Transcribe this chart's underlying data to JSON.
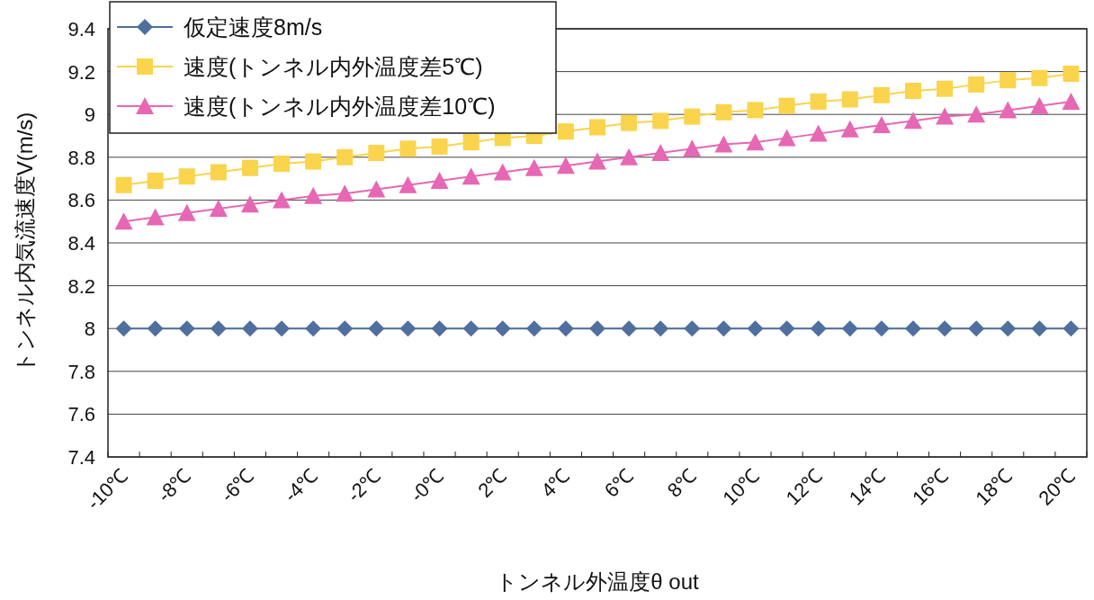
{
  "chart_data": {
    "type": "line",
    "xlabel": "トンネル外温度θ out",
    "ylabel": "トンネル内気流速度V(m/s)",
    "categories": [
      "-10℃",
      null,
      "-8℃",
      null,
      "-6℃",
      null,
      "-4℃",
      null,
      "-2℃",
      null,
      "-0℃",
      null,
      "2℃",
      null,
      "4℃",
      null,
      "6℃",
      null,
      "8℃",
      null,
      "10℃",
      null,
      "12℃",
      null,
      "14℃",
      null,
      "16℃",
      null,
      "18℃",
      null,
      "20℃"
    ],
    "series": [
      {
        "name": "仮定速度8m/s",
        "color": "#4f6f9f",
        "marker": "diamond",
        "values": [
          8,
          8,
          8,
          8,
          8,
          8,
          8,
          8,
          8,
          8,
          8,
          8,
          8,
          8,
          8,
          8,
          8,
          8,
          8,
          8,
          8,
          8,
          8,
          8,
          8,
          8,
          8,
          8,
          8,
          8,
          8
        ]
      },
      {
        "name": "速度(トンネル内外温度差5℃)",
        "color": "#f9d44c",
        "marker": "square",
        "values": [
          8.67,
          8.69,
          8.71,
          8.73,
          8.75,
          8.77,
          8.78,
          8.8,
          8.82,
          8.84,
          8.85,
          8.87,
          8.89,
          8.9,
          8.92,
          8.94,
          8.96,
          8.97,
          8.99,
          9.01,
          9.02,
          9.04,
          9.06,
          9.07,
          9.09,
          9.11,
          9.12,
          9.14,
          9.16,
          9.17,
          9.19
        ]
      },
      {
        "name": "速度(トンネル内外温度差10℃)",
        "color": "#e667b4",
        "marker": "triangle",
        "values": [
          8.5,
          8.52,
          8.54,
          8.56,
          8.58,
          8.6,
          8.62,
          8.63,
          8.65,
          8.67,
          8.69,
          8.71,
          8.73,
          8.75,
          8.76,
          8.78,
          8.8,
          8.82,
          8.84,
          8.86,
          8.87,
          8.89,
          8.91,
          8.93,
          8.95,
          8.97,
          8.99,
          9.0,
          9.02,
          9.04,
          9.06
        ]
      }
    ],
    "ylim": [
      7.4,
      9.4
    ],
    "yticks": [
      7.4,
      7.6,
      7.8,
      8,
      8.2,
      8.4,
      8.6,
      8.8,
      9,
      9.2,
      9.4
    ],
    "grid": "y",
    "legend": "top left",
    "line_style": "solid"
  }
}
